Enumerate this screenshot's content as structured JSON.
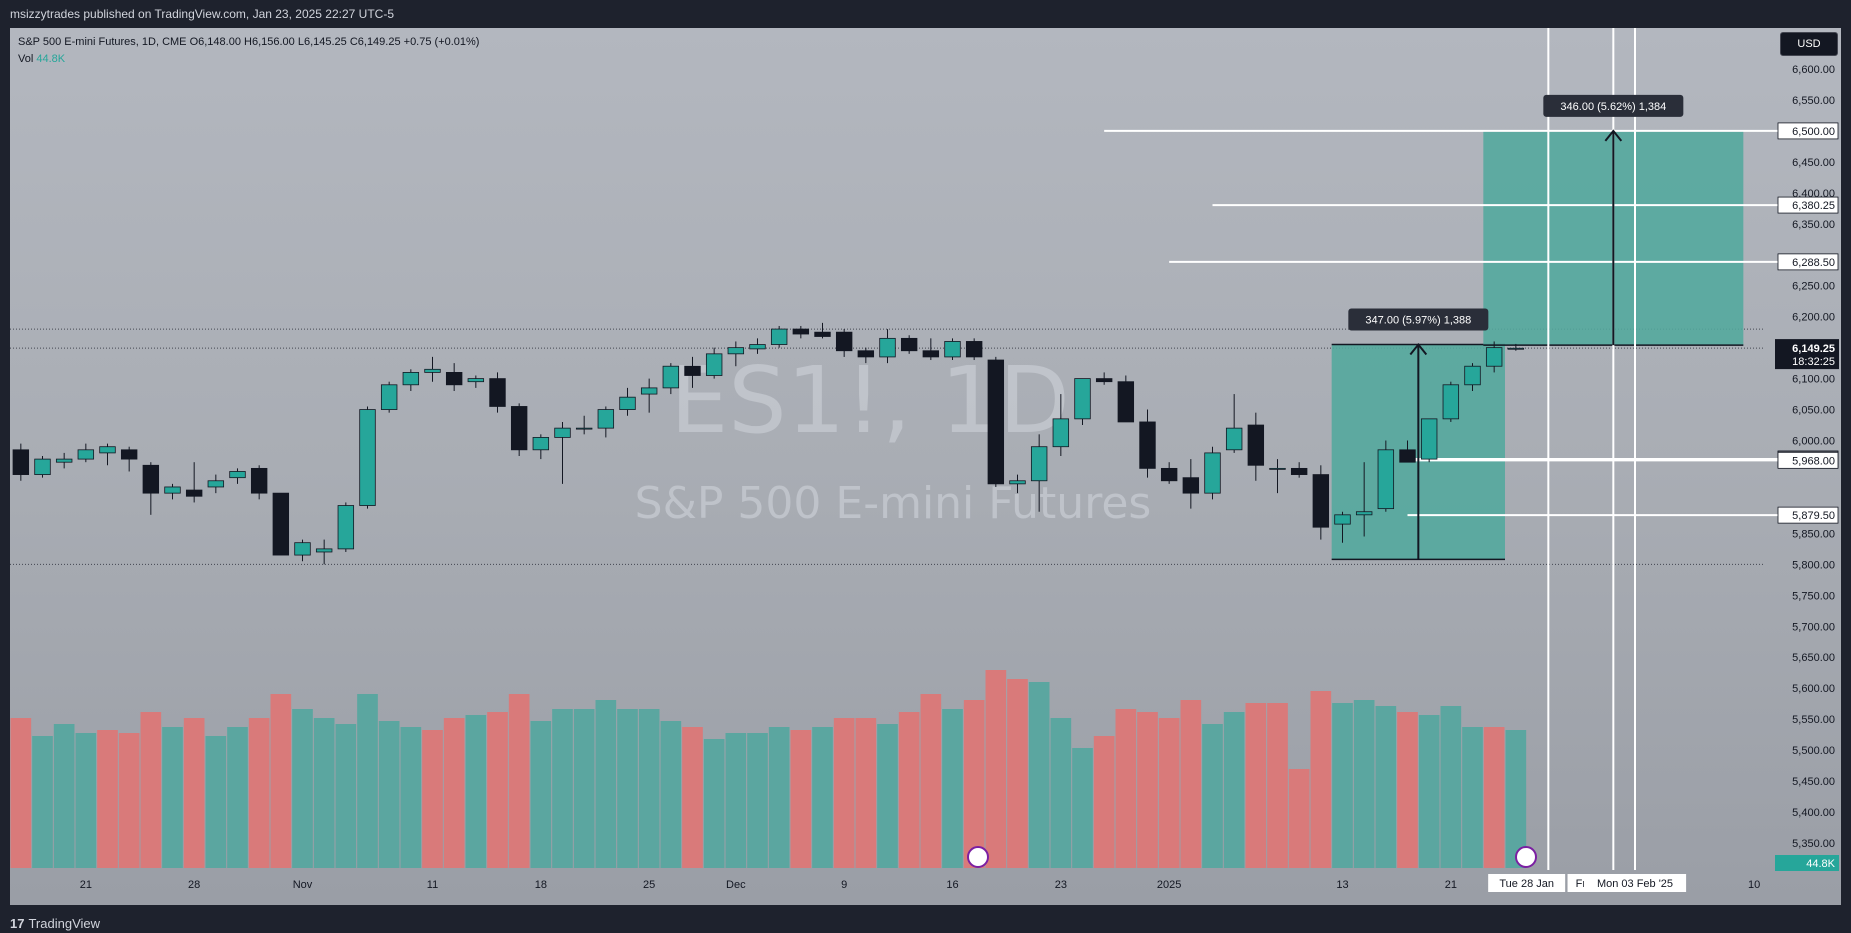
{
  "header": {
    "publisher_line": "msizzytrades published on TradingView.com, Jan 23, 2025 22:27 UTC-5"
  },
  "footer": {
    "brand": "TradingView",
    "logo_glyph": "17"
  },
  "legend": {
    "symbol_line": "S&P 500 E-mini Futures, 1D, CME  O6,148.00  H6,156.00  L6,145.25  C6,149.25  +0.75 (+0.01%)",
    "vol_label": "Vol",
    "vol_value": "44.8K"
  },
  "currency_button": "USD",
  "watermark": {
    "ticker": "ES1!, 1D",
    "name": "S&P 500 E-mini Futures"
  },
  "colors": {
    "up": "#26a69a",
    "down": "#131722",
    "vol_up": "#5ba6a0",
    "vol_down": "#d97a7a",
    "box": "#52a89d"
  },
  "chart_data": {
    "type": "candlestick",
    "ylim": [
      5300,
      6650
    ],
    "y_ticks": [
      6600,
      6550,
      6450,
      6400,
      6350,
      6250,
      6200,
      6100,
      6050,
      6000,
      5850,
      5800,
      5750,
      5700,
      5650,
      5600,
      5550,
      5500,
      5450,
      5400,
      5350
    ],
    "x_tick_labels": [
      {
        "label": "21",
        "at": 3
      },
      {
        "label": "28",
        "at": 8
      },
      {
        "label": "Nov",
        "at": 13
      },
      {
        "label": "11",
        "at": 19
      },
      {
        "label": "18",
        "at": 24
      },
      {
        "label": "25",
        "at": 29
      },
      {
        "label": "Dec",
        "at": 33
      },
      {
        "label": "9",
        "at": 38
      },
      {
        "label": "16",
        "at": 43
      },
      {
        "label": "23",
        "at": 48
      },
      {
        "label": "2025",
        "at": 53
      },
      {
        "label": "13",
        "at": 61
      },
      {
        "label": "21",
        "at": 66
      },
      {
        "label": "10",
        "at": 80
      }
    ],
    "x_range": [
      -0.5,
      80.5
    ],
    "candles": [
      [
        5985,
        5995,
        5935,
        5945
      ],
      [
        5945,
        5975,
        5940,
        5970
      ],
      [
        5965,
        5980,
        5955,
        5970
      ],
      [
        5970,
        5995,
        5965,
        5985
      ],
      [
        5980,
        5995,
        5960,
        5990
      ],
      [
        5985,
        5990,
        5950,
        5970
      ],
      [
        5960,
        5965,
        5880,
        5915
      ],
      [
        5915,
        5930,
        5905,
        5925
      ],
      [
        5920,
        5965,
        5900,
        5910
      ],
      [
        5925,
        5945,
        5915,
        5935
      ],
      [
        5940,
        5955,
        5930,
        5950
      ],
      [
        5955,
        5960,
        5905,
        5915
      ],
      [
        5915,
        5915,
        5815,
        5815
      ],
      [
        5815,
        5840,
        5805,
        5835
      ],
      [
        5820,
        5840,
        5800,
        5825
      ],
      [
        5825,
        5900,
        5820,
        5895
      ],
      [
        5895,
        6055,
        5890,
        6050
      ],
      [
        6050,
        6095,
        6045,
        6090
      ],
      [
        6090,
        6115,
        6080,
        6110
      ],
      [
        6110,
        6135,
        6095,
        6115
      ],
      [
        6110,
        6125,
        6080,
        6090
      ],
      [
        6095,
        6105,
        6085,
        6100
      ],
      [
        6100,
        6110,
        6045,
        6055
      ],
      [
        6055,
        6060,
        5975,
        5985
      ],
      [
        5985,
        6010,
        5970,
        6005
      ],
      [
        6005,
        6030,
        5930,
        6020
      ],
      [
        6020,
        6040,
        6010,
        6020
      ],
      [
        6020,
        6055,
        6005,
        6050
      ],
      [
        6050,
        6085,
        6040,
        6070
      ],
      [
        6075,
        6100,
        6045,
        6085
      ],
      [
        6085,
        6125,
        6075,
        6120
      ],
      [
        6120,
        6135,
        6085,
        6105
      ],
      [
        6105,
        6150,
        6100,
        6140
      ],
      [
        6140,
        6160,
        6120,
        6150
      ],
      [
        6148,
        6165,
        6140,
        6155
      ],
      [
        6155,
        6185,
        6150,
        6180
      ],
      [
        6180,
        6185,
        6165,
        6172
      ],
      [
        6175,
        6190,
        6165,
        6168
      ],
      [
        6175,
        6180,
        6135,
        6145
      ],
      [
        6145,
        6150,
        6125,
        6135
      ],
      [
        6135,
        6180,
        6125,
        6165
      ],
      [
        6165,
        6170,
        6140,
        6145
      ],
      [
        6145,
        6165,
        6130,
        6135
      ],
      [
        6135,
        6165,
        6130,
        6160
      ],
      [
        6160,
        6165,
        6130,
        6135
      ],
      [
        6130,
        6135,
        5925,
        5930
      ],
      [
        5930,
        5945,
        5915,
        5935
      ],
      [
        5935,
        6010,
        5885,
        5990
      ],
      [
        5990,
        6075,
        5975,
        6035
      ],
      [
        6035,
        6095,
        6025,
        6100
      ],
      [
        6100,
        6110,
        6090,
        6095
      ],
      [
        6095,
        6105,
        6030,
        6030
      ],
      [
        6030,
        6050,
        5940,
        5955
      ],
      [
        5955,
        5965,
        5930,
        5935
      ],
      [
        5940,
        5970,
        5890,
        5915
      ],
      [
        5915,
        5990,
        5905,
        5980
      ],
      [
        5985,
        6075,
        5980,
        6020
      ],
      [
        6025,
        6045,
        5935,
        5960
      ],
      [
        5955,
        5970,
        5915,
        5955
      ],
      [
        5955,
        5965,
        5940,
        5945
      ],
      [
        5945,
        5960,
        5840,
        5860
      ],
      [
        5865,
        5885,
        5835,
        5880
      ],
      [
        5880,
        5965,
        5845,
        5885
      ],
      [
        5890,
        6000,
        5885,
        5985
      ],
      [
        5985,
        6000,
        5975,
        5965
      ],
      [
        5970,
        6035,
        5965,
        6035
      ],
      [
        6035,
        6095,
        6030,
        6090
      ],
      [
        6090,
        6125,
        6080,
        6120
      ],
      [
        6120,
        6160,
        6110,
        6150
      ],
      [
        6148,
        6156,
        6145,
        6149
      ]
    ],
    "volume": [
      {
        "v": 0.5,
        "up": false
      },
      {
        "v": 0.44,
        "up": true
      },
      {
        "v": 0.48,
        "up": true
      },
      {
        "v": 0.45,
        "up": true
      },
      {
        "v": 0.46,
        "up": false
      },
      {
        "v": 0.45,
        "up": false
      },
      {
        "v": 0.52,
        "up": false
      },
      {
        "v": 0.47,
        "up": true
      },
      {
        "v": 0.5,
        "up": false
      },
      {
        "v": 0.44,
        "up": true
      },
      {
        "v": 0.47,
        "up": true
      },
      {
        "v": 0.5,
        "up": false
      },
      {
        "v": 0.58,
        "up": false
      },
      {
        "v": 0.53,
        "up": true
      },
      {
        "v": 0.5,
        "up": true
      },
      {
        "v": 0.48,
        "up": true
      },
      {
        "v": 0.58,
        "up": true
      },
      {
        "v": 0.49,
        "up": true
      },
      {
        "v": 0.47,
        "up": true
      },
      {
        "v": 0.46,
        "up": false
      },
      {
        "v": 0.5,
        "up": false
      },
      {
        "v": 0.51,
        "up": true
      },
      {
        "v": 0.52,
        "up": false
      },
      {
        "v": 0.58,
        "up": false
      },
      {
        "v": 0.49,
        "up": true
      },
      {
        "v": 0.53,
        "up": true
      },
      {
        "v": 0.53,
        "up": true
      },
      {
        "v": 0.56,
        "up": true
      },
      {
        "v": 0.53,
        "up": true
      },
      {
        "v": 0.53,
        "up": true
      },
      {
        "v": 0.49,
        "up": true
      },
      {
        "v": 0.47,
        "up": false
      },
      {
        "v": 0.43,
        "up": true
      },
      {
        "v": 0.45,
        "up": true
      },
      {
        "v": 0.45,
        "up": true
      },
      {
        "v": 0.47,
        "up": true
      },
      {
        "v": 0.46,
        "up": false
      },
      {
        "v": 0.47,
        "up": true
      },
      {
        "v": 0.5,
        "up": false
      },
      {
        "v": 0.5,
        "up": false
      },
      {
        "v": 0.48,
        "up": true
      },
      {
        "v": 0.52,
        "up": false
      },
      {
        "v": 0.58,
        "up": false
      },
      {
        "v": 0.53,
        "up": true
      },
      {
        "v": 0.56,
        "up": false
      },
      {
        "v": 0.66,
        "up": false
      },
      {
        "v": 0.63,
        "up": false
      },
      {
        "v": 0.62,
        "up": true
      },
      {
        "v": 0.5,
        "up": true
      },
      {
        "v": 0.4,
        "up": true
      },
      {
        "v": 0.44,
        "up": false
      },
      {
        "v": 0.53,
        "up": false
      },
      {
        "v": 0.52,
        "up": false
      },
      {
        "v": 0.5,
        "up": false
      },
      {
        "v": 0.56,
        "up": false
      },
      {
        "v": 0.48,
        "up": true
      },
      {
        "v": 0.52,
        "up": true
      },
      {
        "v": 0.55,
        "up": false
      },
      {
        "v": 0.55,
        "up": false
      },
      {
        "v": 0.33,
        "up": false
      },
      {
        "v": 0.59,
        "up": false
      },
      {
        "v": 0.55,
        "up": true
      },
      {
        "v": 0.56,
        "up": true
      },
      {
        "v": 0.54,
        "up": true
      },
      {
        "v": 0.52,
        "up": false
      },
      {
        "v": 0.51,
        "up": true
      },
      {
        "v": 0.54,
        "up": true
      },
      {
        "v": 0.47,
        "up": true
      },
      {
        "v": 0.47,
        "up": false
      },
      {
        "v": 0.46,
        "up": true
      }
    ],
    "volume_badge": "44.8K",
    "horizontal_lines": [
      {
        "label": "6,500.00",
        "price": 6500,
        "from_bar": 50
      },
      {
        "label": "6,380.25",
        "price": 6380.25,
        "from_bar": 55
      },
      {
        "label": "6,288.50",
        "price": 6288.5,
        "from_bar": 53
      },
      {
        "label": "5,970.25",
        "price": 5970.25,
        "from_bar": 64
      },
      {
        "label": "5,969.50",
        "price": 5969.5,
        "from_bar": 64
      },
      {
        "label": "5,968.00",
        "price": 5968,
        "from_bar": 64
      },
      {
        "label": "5,879.50",
        "price": 5879.5,
        "from_bar": 64
      }
    ],
    "dotted_lines": [
      6180,
      6149.25,
      5800
    ],
    "current_price": {
      "label": "6,149.25",
      "countdown": "18:32:25",
      "price": 6149.25
    },
    "measure_boxes": [
      {
        "label": "347.00 (5.97%) 1,388",
        "x0": 60.5,
        "x1": 68.5,
        "low": 5808,
        "high": 6155,
        "arrow_x": 64.5
      },
      {
        "label": "346.00 (5.62%) 1,384",
        "x0": 67.5,
        "x1": 79.5,
        "low": 6154,
        "high": 6500,
        "arrow_x": 73.5
      }
    ],
    "vertical_lines": [
      70.5,
      73.5,
      74.5
    ],
    "date_badges": [
      {
        "label": "Tue 28 Jan",
        "at": 69.5
      },
      {
        "label": "Fr",
        "at": 72
      },
      {
        "label": "Mon 03 Feb '25",
        "at": 74.5
      }
    ]
  }
}
